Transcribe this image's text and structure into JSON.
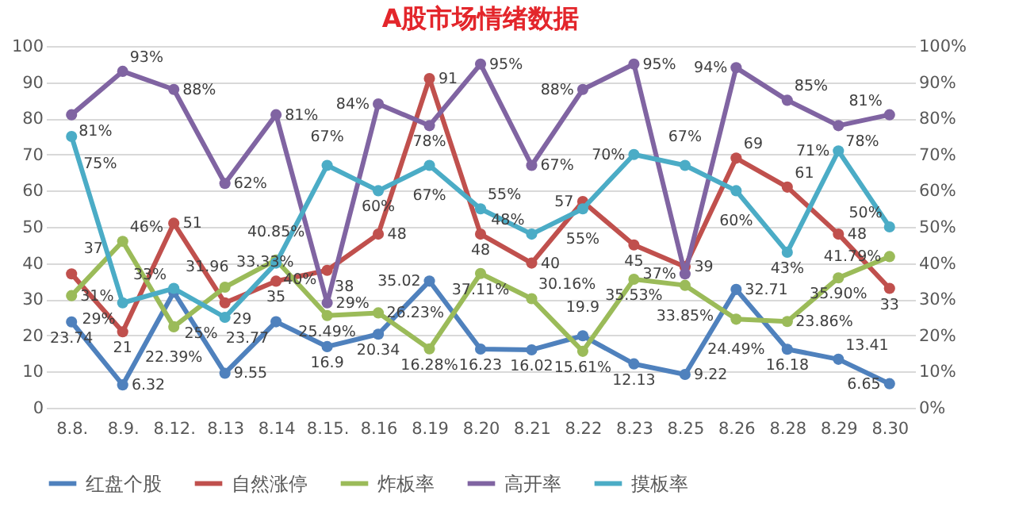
{
  "chart_data": {
    "type": "line",
    "title": "A股市场情绪数据",
    "categories": [
      "8.8.",
      "8.9.",
      "8.12.",
      "8.13",
      "8.14",
      "8.15.",
      "8.16",
      "8.19",
      "8.20",
      "8.21",
      "8.22",
      "8.23",
      "8.25",
      "8.26",
      "8.28",
      "8.29",
      "8.30"
    ],
    "series": [
      {
        "name": "红盘个股",
        "color": "#4f81bd",
        "values": [
          23.74,
          6.32,
          31.96,
          9.55,
          23.77,
          16.9,
          20.34,
          35.02,
          16.23,
          16.02,
          19.9,
          12.13,
          9.22,
          32.71,
          16.18,
          13.41,
          6.65
        ],
        "value_labels": [
          "23.74",
          "6.32",
          "31.96",
          "9.55",
          "23.77",
          "16.9",
          "20.34",
          "35.02",
          "16.23",
          "16.02",
          "19.9",
          "12.13",
          "9.22",
          "32.71",
          "16.18",
          "13.41",
          "6.65"
        ]
      },
      {
        "name": "自然涨停",
        "color": "#c0504d",
        "values": [
          37,
          21,
          51,
          29,
          35,
          38,
          48,
          91,
          48,
          40,
          57,
          45,
          39,
          69,
          61,
          48,
          33
        ],
        "value_labels": [
          "37",
          "21",
          "51",
          "29",
          "35",
          "38",
          "48",
          "91",
          "48",
          "40",
          "57",
          "45",
          "39",
          "69",
          "61",
          "48",
          "33"
        ]
      },
      {
        "name": "炸板率",
        "color": "#9bbb59",
        "axis": "y2",
        "values": [
          31,
          46,
          22.39,
          33.33,
          40.85,
          25.49,
          26.23,
          16.28,
          37.11,
          30.16,
          15.61,
          35.53,
          33.85,
          24.49,
          23.86,
          35.9,
          41.79
        ],
        "value_labels": [
          "31%",
          "46%",
          "22.39%",
          "33.33%",
          "40.85%",
          "25.49%",
          "26.23%",
          "16.28%",
          "37.11%",
          "30.16%",
          "15.61%",
          "35.53%",
          "33.85%",
          "24.49%",
          "23.86%",
          "35.90%",
          "41.79%"
        ]
      },
      {
        "name": "高开率",
        "color": "#8064a2",
        "axis": "y2",
        "values": [
          81,
          93,
          88,
          62,
          81,
          29,
          84,
          78,
          95,
          67,
          88,
          95,
          37,
          94,
          85,
          78,
          81
        ],
        "value_labels": [
          "81%",
          "93%",
          "88%",
          "62%",
          "81%",
          "29%",
          "84%",
          "78%",
          "95%",
          "67%",
          "88%",
          "95%",
          "37%",
          "94%",
          "85%",
          "78%",
          "81%"
        ]
      },
      {
        "name": "摸板率",
        "color": "#4bacc6",
        "axis": "y2",
        "values": [
          75,
          29,
          33,
          25,
          40,
          67,
          60,
          67,
          55,
          48,
          55,
          70,
          67,
          60,
          43,
          71,
          50
        ],
        "value_labels": [
          "75%",
          "29%",
          "33%",
          "25%",
          "40%",
          "67%",
          "60%",
          "67%",
          "55%",
          "48%",
          "55%",
          "70%",
          "67%",
          "60%",
          "43%",
          "71%",
          "50%"
        ]
      }
    ],
    "ylim": [
      0,
      100
    ],
    "yticks": [
      0,
      10,
      20,
      30,
      40,
      50,
      60,
      70,
      80,
      90,
      100
    ],
    "y2lim": [
      0,
      100
    ],
    "y2ticks": [
      {
        "value": 0,
        "label": "0%"
      },
      {
        "value": 10,
        "label": "10%"
      },
      {
        "value": 20,
        "label": "20%"
      },
      {
        "value": 30,
        "label": "30%"
      },
      {
        "value": 40,
        "label": "40%"
      },
      {
        "value": 50,
        "label": "50%"
      },
      {
        "value": 60,
        "label": "60%"
      },
      {
        "value": 70,
        "label": "70%"
      },
      {
        "value": 80,
        "label": "80%"
      },
      {
        "value": 90,
        "label": "90%"
      },
      {
        "value": 100,
        "label": "100%"
      }
    ],
    "grid": "y",
    "legend": "bottom",
    "marker": "circle",
    "line_style": "solid"
  }
}
